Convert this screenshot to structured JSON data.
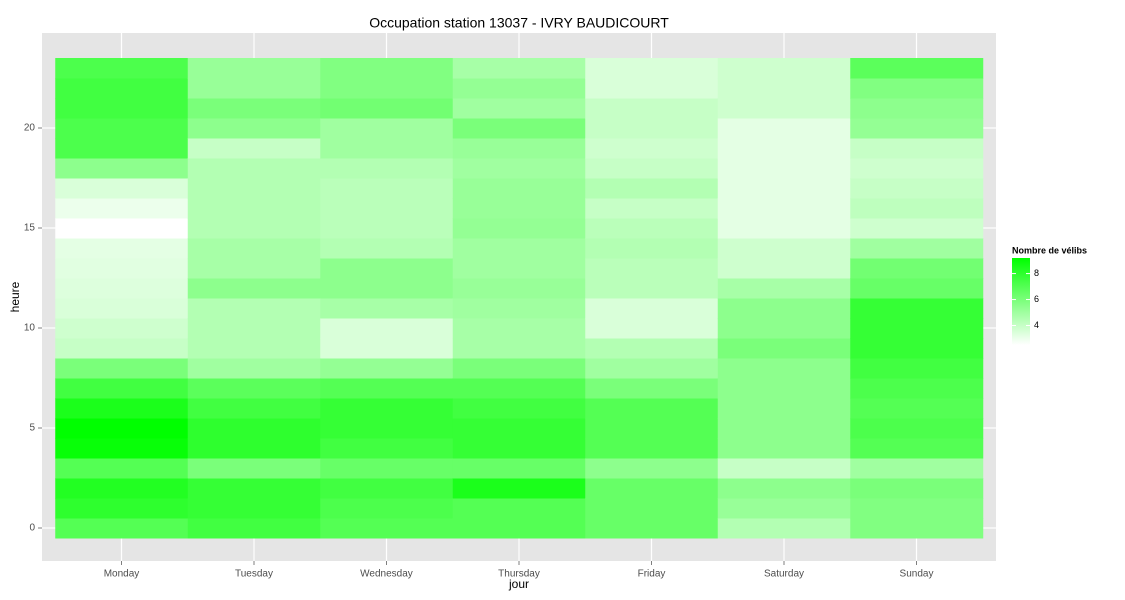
{
  "chart_data": {
    "type": "heatmap",
    "title": "Occupation station 13037 - IVRY BAUDICOURT",
    "x_label": "jour",
    "y_label": "heure",
    "categories": [
      "Monday",
      "Tuesday",
      "Wednesday",
      "Thursday",
      "Friday",
      "Saturday",
      "Sunday"
    ],
    "y": [
      0,
      1,
      2,
      3,
      4,
      5,
      6,
      7,
      8,
      9,
      10,
      11,
      12,
      13,
      14,
      15,
      16,
      17,
      18,
      19,
      20,
      21,
      22,
      23
    ],
    "values": [
      [
        7,
        8,
        8.3,
        7,
        9,
        9.2,
        8.5,
        7.5,
        6,
        4,
        3.8,
        3.5,
        3.4,
        3.3,
        3.2,
        2.5,
        3,
        3.5,
        5.5,
        7.2,
        7.2,
        7.5,
        7.5,
        7.2
      ],
      [
        7.5,
        7.8,
        7.8,
        6,
        8,
        8,
        7.5,
        6.8,
        5,
        4.5,
        4.5,
        4.5,
        5.5,
        4.8,
        4.8,
        4.5,
        4.5,
        4.5,
        4.5,
        4,
        5.5,
        6,
        5.2,
        5.2
      ],
      [
        7,
        7.2,
        7.5,
        6.5,
        7.5,
        7.8,
        7.8,
        7,
        5.3,
        3.5,
        3.5,
        4.8,
        5.5,
        5.5,
        4.5,
        4.3,
        4.3,
        4.3,
        4.5,
        5,
        5,
        6.2,
        5.8,
        5.8
      ],
      [
        7,
        7,
        8.5,
        6.5,
        7.8,
        7.8,
        7.5,
        7,
        6,
        4.8,
        4.8,
        5,
        5.2,
        5,
        5,
        5.3,
        5.2,
        5.2,
        5,
        5.2,
        6,
        5,
        5.3,
        4.8
      ],
      [
        6.5,
        6.5,
        6.5,
        5.5,
        7,
        7,
        7,
        6,
        5,
        4.5,
        3.5,
        3.5,
        4.3,
        4.3,
        4.5,
        4.3,
        4,
        4.5,
        4,
        3.8,
        4,
        4,
        3.5,
        3.5
      ],
      [
        4.5,
        5.2,
        5.5,
        4,
        5.5,
        5.5,
        5.5,
        5.5,
        5.5,
        6,
        5.5,
        5.5,
        4.8,
        3.8,
        3.8,
        3.2,
        3.2,
        3.2,
        3.2,
        3.2,
        3.2,
        3.8,
        3.8,
        3.8
      ],
      [
        5.8,
        5.8,
        6,
        5,
        7,
        7.2,
        7,
        7.2,
        7.5,
        7.8,
        7.8,
        7.8,
        6.5,
        6.2,
        5,
        3.8,
        4.2,
        4,
        3.8,
        4,
        5.3,
        5.5,
        5.8,
        6.8
      ]
    ],
    "ylim": [
      -1.65,
      24.75
    ],
    "yticks": [
      0,
      5,
      10,
      15,
      20
    ],
    "grid": true,
    "colorbar": {
      "title": "Nombre de vélibs",
      "lim": [
        2.5,
        9.2
      ],
      "ticks": [
        4,
        6,
        8
      ],
      "low": "#ffffff",
      "high": "#00ff00"
    }
  }
}
